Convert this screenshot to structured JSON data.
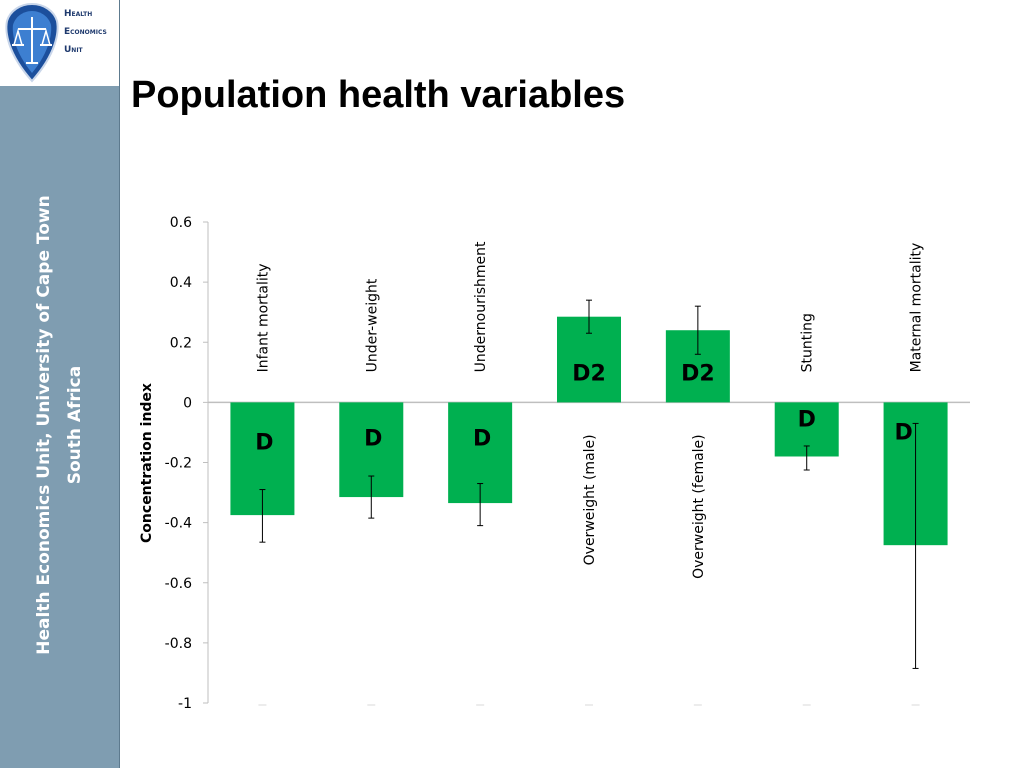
{
  "slide": {
    "title": "Population health variables",
    "sidebar_text_line1": "Health Economics Unit, University of Cape Town",
    "sidebar_text_line2": "South Africa",
    "logo": {
      "line1": "Health",
      "line2": "Economics",
      "line3": "Unit",
      "icon": "scales-of-justice-shield-icon"
    }
  },
  "colors": {
    "bar": "#00b050",
    "sidebar": "#7f9db1",
    "axis": "#bfbfbf",
    "logo_text": "#1f3a6e"
  },
  "chart_data": {
    "type": "bar",
    "title": "",
    "xlabel": "",
    "ylabel": "Concentration index",
    "ylim": [
      -1,
      0.6
    ],
    "yticks": [
      0.6,
      0.4,
      0.2,
      0,
      -0.2,
      -0.4,
      -0.6,
      -0.8,
      -1
    ],
    "ytick_labels": [
      "0.6",
      "0.4",
      "0.2",
      "0",
      "-0.2",
      "-0.4",
      "-0.6",
      "-0.8",
      "-1"
    ],
    "grid": false,
    "categories": [
      "Infant  mortality",
      "Under-weight",
      "Undernourishment",
      "Overweight (male)",
      "Overweight (female)",
      "Stunting",
      "Maternal mortality"
    ],
    "values": [
      -0.375,
      -0.315,
      -0.335,
      0.285,
      0.24,
      -0.18,
      -0.475
    ],
    "error_low": [
      -0.465,
      -0.385,
      -0.41,
      0.23,
      0.16,
      -0.225,
      -0.885
    ],
    "error_high": [
      -0.29,
      -0.245,
      -0.27,
      0.34,
      0.32,
      -0.145,
      -0.07
    ],
    "annotations": [
      "D",
      "D",
      "D",
      "D2",
      "D2",
      "D",
      "D"
    ]
  }
}
